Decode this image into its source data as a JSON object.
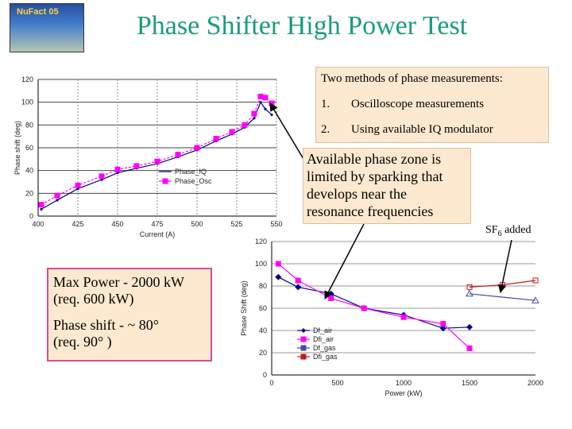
{
  "slide": {
    "title": "Phase Shifter High Power Test",
    "methods": {
      "heading": "Two methods of phase measurements:",
      "items": [
        {
          "num": "1.",
          "text": "Oscilloscope measurements"
        },
        {
          "num": "2.",
          "text": "Using available IQ modulator"
        }
      ]
    },
    "zone_note": "Available phase zone is limited by sparking that develops near the resonance frequencies",
    "max_power": {
      "line1": "Max Power - 2000 kW",
      "line2": "(req. 600 kW)",
      "line3": "Phase shift - ~ 80°",
      "line4": "(req. 90° )"
    },
    "sf6_label": "SF6 added",
    "logo_text": "NuFact 05"
  },
  "chart_data": [
    {
      "type": "line",
      "xlabel": "Current (A)",
      "ylabel": "Phase shift (deg)",
      "xlim": [
        400,
        550
      ],
      "ylim": [
        0,
        120
      ],
      "x_ticks": [
        "400",
        "425",
        "450",
        "475",
        "500",
        "525",
        "550"
      ],
      "y_ticks": [
        "0",
        "20",
        "40",
        "60",
        "80",
        "100",
        "120"
      ],
      "legend_position": "center-right",
      "series": [
        {
          "name": "Phase_IQ",
          "color": "#000080",
          "x": [
            402,
            412,
            425,
            440,
            450,
            462,
            475,
            488,
            500,
            512,
            522,
            530,
            536,
            540,
            543,
            547
          ],
          "y": [
            6,
            14,
            24,
            32,
            38,
            42,
            46,
            52,
            58,
            66,
            72,
            78,
            86,
            100,
            94,
            89
          ]
        },
        {
          "name": "Phase_Osc",
          "color": "#ff00ff",
          "x": [
            402,
            412,
            425,
            440,
            450,
            462,
            475,
            488,
            500,
            512,
            522,
            530,
            536,
            540,
            543,
            547
          ],
          "y": [
            10,
            18,
            27,
            35,
            41,
            44,
            48,
            54,
            60,
            68,
            74,
            80,
            90,
            105,
            104,
            99
          ]
        }
      ]
    },
    {
      "type": "line",
      "xlabel": "Power (kW)",
      "ylabel": "Phase Shift (deg)",
      "xlim": [
        0,
        2000
      ],
      "ylim": [
        0,
        120
      ],
      "x_ticks": [
        "0",
        "500",
        "1000",
        "1500",
        "2000"
      ],
      "y_ticks": [
        "0",
        "20",
        "40",
        "60",
        "80",
        "100",
        "120"
      ],
      "legend_position": "bottom-left",
      "series": [
        {
          "name": "Df_air",
          "color": "#000080",
          "marker": "diamond",
          "x": [
            50,
            200,
            450,
            700,
            1000,
            1300,
            1500
          ],
          "y": [
            88,
            79,
            73,
            60,
            54,
            42,
            43
          ]
        },
        {
          "name": "Dfi_air",
          "color": "#ff00ff",
          "marker": "square",
          "x": [
            50,
            200,
            450,
            700,
            1000,
            1300,
            1500
          ],
          "y": [
            100,
            85,
            69,
            60,
            52,
            46,
            24
          ]
        },
        {
          "name": "Df_gas",
          "color": "#4a4aa0",
          "marker": "triangle",
          "x": [
            1500,
            2000
          ],
          "y": [
            73,
            67
          ]
        },
        {
          "name": "Dfi_gas",
          "color": "#c01818",
          "marker": "square",
          "x": [
            1500,
            1750,
            2000
          ],
          "y": [
            79,
            81,
            85
          ]
        }
      ]
    }
  ]
}
